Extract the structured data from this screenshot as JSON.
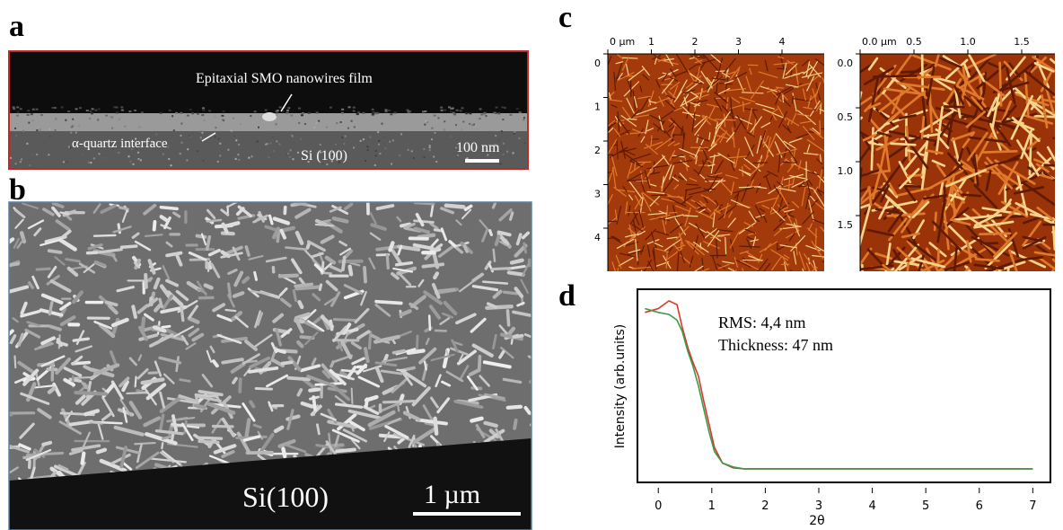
{
  "panel_a": {
    "label": "a",
    "film": "Epitaxial SMO nanowires film",
    "interface": "α-quartz interface",
    "substrate": "Si (100)",
    "scale_bar": "100 nm"
  },
  "panel_b": {
    "label": "b",
    "substrate": "Si(100)",
    "scale_bar": "1 µm"
  },
  "panel_c": {
    "label": "c",
    "left": {
      "x_labels": [
        "0 µm",
        "1",
        "2",
        "3",
        "4"
      ],
      "y_labels": [
        "0",
        "1",
        "2",
        "3",
        "4"
      ]
    },
    "right": {
      "x_labels": [
        "0.0 µm",
        "0.5",
        "1.0",
        "1.5"
      ],
      "y_labels": [
        "0.0",
        "0.5",
        "1.0",
        "1.5"
      ]
    }
  },
  "chart_data": {
    "type": "line",
    "label": "d",
    "xlabel": "2θ",
    "ylabel": "Intensity (arb.units)",
    "annotations": [
      "RMS: 4,4 nm",
      "Thickness: 47 nm"
    ],
    "x": [
      -0.25,
      0,
      0.2,
      0.35,
      0.45,
      0.55,
      0.65,
      0.75,
      0.85,
      0.95,
      1.05,
      1.2,
      1.4,
      1.6,
      2,
      3,
      4,
      5,
      6,
      7
    ],
    "series": [
      {
        "color": "#d9382a",
        "values": [
          0.88,
          0.9,
          0.94,
          0.92,
          0.8,
          0.7,
          0.62,
          0.55,
          0.42,
          0.3,
          0.18,
          0.1,
          0.075,
          0.07,
          0.07,
          0.07,
          0.07,
          0.07,
          0.07,
          0.07
        ]
      },
      {
        "color": "#3a9a4a",
        "values": [
          0.9,
          0.88,
          0.87,
          0.84,
          0.78,
          0.68,
          0.6,
          0.5,
          0.38,
          0.26,
          0.16,
          0.1,
          0.08,
          0.07,
          0.07,
          0.07,
          0.07,
          0.07,
          0.07,
          0.07
        ]
      }
    ],
    "xlim": [
      -0.39,
      7.33
    ],
    "xticks": [
      0,
      1,
      2,
      3,
      4,
      5,
      6,
      7
    ],
    "ylim": [
      0,
      1
    ]
  }
}
